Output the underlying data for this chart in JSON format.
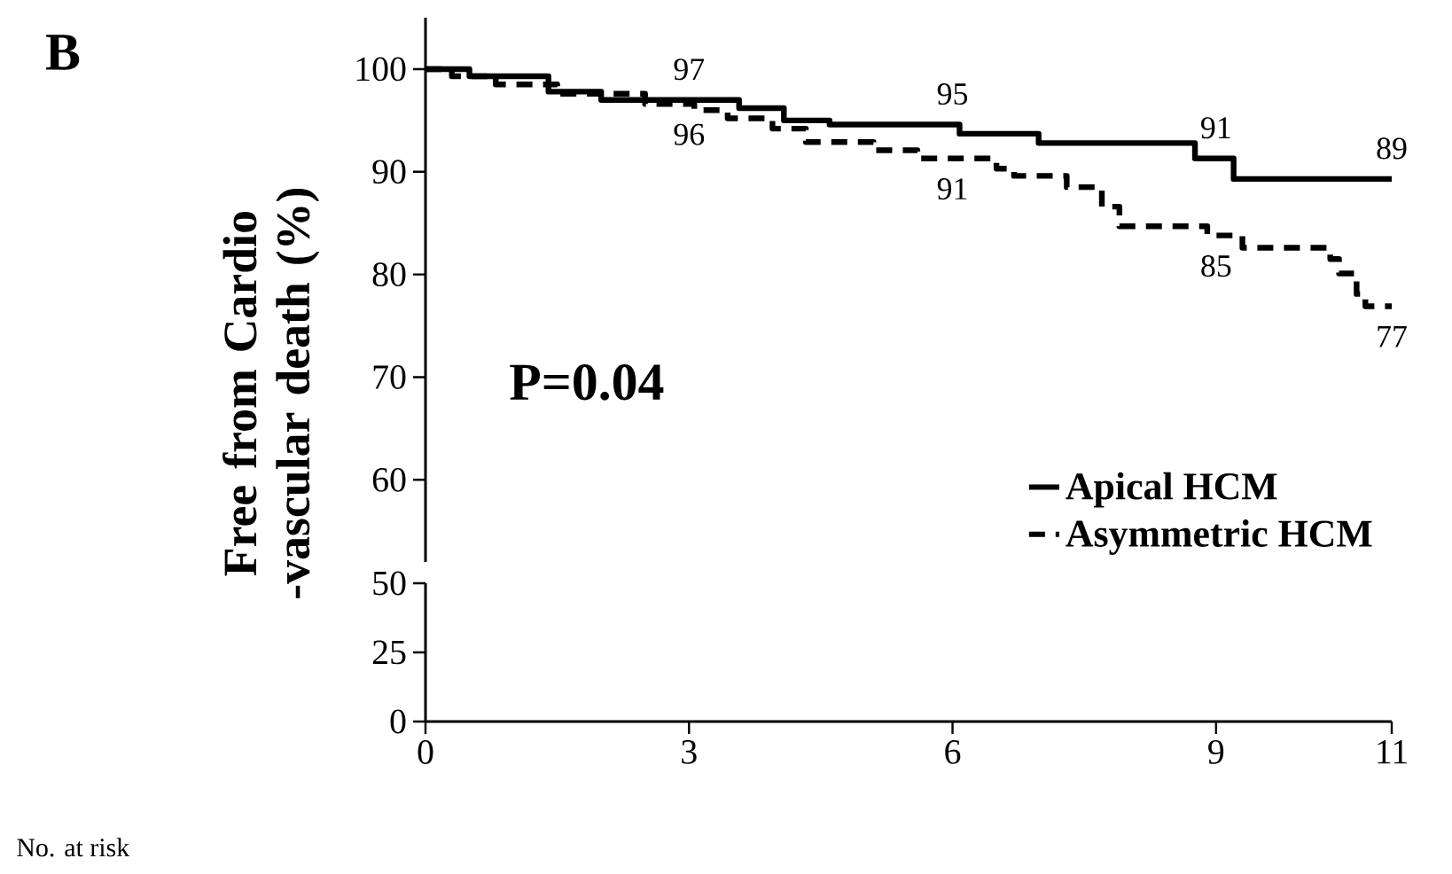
{
  "chart_data": [
    {
      "type": "step",
      "title": "B",
      "ylabel": "Free from Cardio -vascular death (%)",
      "xlim": [
        0,
        11
      ],
      "ylim": [
        52,
        105
      ],
      "yticks": [
        60,
        70,
        80,
        90,
        100
      ],
      "tick_labels": "y",
      "legend": "bottom right",
      "series": [
        {
          "name": "Apical HCM",
          "color": "#000000",
          "line_style": "solid",
          "x": [
            0,
            0.5,
            1.4,
            2.0,
            3.57,
            4.08,
            4.6,
            6.08,
            6.98,
            8.76,
            9.2,
            11
          ],
          "values": [
            100,
            99.3,
            97.8,
            97,
            96.2,
            95,
            94.6,
            93.7,
            92.8,
            91.3,
            89.3,
            89.3
          ]
        },
        {
          "name": "Asymmetric HCM",
          "color": "#000000",
          "line_style": "dashed",
          "x": [
            0,
            0.3,
            0.8,
            1.5,
            2.5,
            3.06,
            3.44,
            3.95,
            4.33,
            5.1,
            5.6,
            6.5,
            6.7,
            7.3,
            7.7,
            7.9,
            8.9,
            9.3,
            10.3,
            10.4,
            10.6,
            10.7,
            11
          ],
          "values": [
            100,
            99.3,
            98.5,
            97.6,
            96.6,
            96,
            95.2,
            94.2,
            92.9,
            92.1,
            91.3,
            90.3,
            89.6,
            88.5,
            86.6,
            84.7,
            83.8,
            82.6,
            81.5,
            80.1,
            78.1,
            76.9,
            76.9
          ]
        }
      ],
      "annotations": [
        {
          "text": "97",
          "x": 3,
          "y": 97
        },
        {
          "text": "95",
          "x": 6,
          "y": 95
        },
        {
          "text": "91",
          "x": 9,
          "y": 91
        },
        {
          "text": "89",
          "x": 11,
          "y": 89
        },
        {
          "text": "96",
          "x": 3,
          "y": 96
        },
        {
          "text": "91",
          "x": 6,
          "y": 91
        },
        {
          "text": "85",
          "x": 9,
          "y": 85
        },
        {
          "text": "77",
          "x": 11,
          "y": 77
        },
        "P=0.04",
        "No. at risk"
      ]
    },
    {
      "type": "line",
      "xlim": [
        0,
        11
      ],
      "xticks": [
        0,
        3,
        6,
        9,
        11
      ],
      "ylim": [
        0,
        50
      ],
      "yticks": [
        0,
        25,
        50
      ]
    }
  ]
}
